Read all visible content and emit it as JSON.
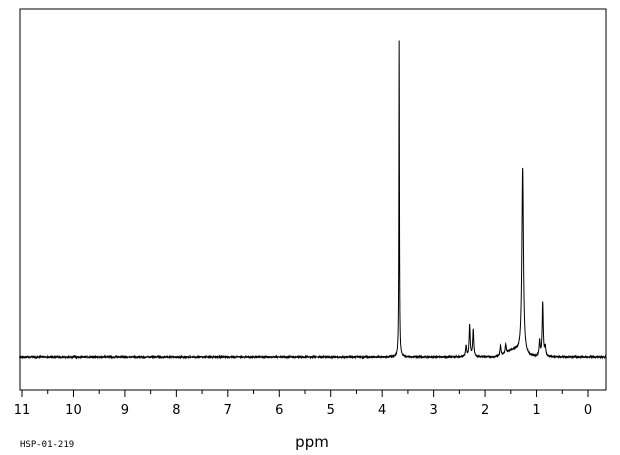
{
  "chart_data": {
    "type": "line",
    "xlabel": "ppm",
    "ylabel": "",
    "xlim": [
      11,
      0
    ],
    "x_reversed": true,
    "ylim": [
      0,
      1
    ],
    "grid": false,
    "major_ticks": [
      11,
      10,
      9,
      8,
      7,
      6,
      5,
      4,
      3,
      2,
      1,
      0
    ],
    "tick_labels": [
      "11",
      "10",
      "9",
      "8",
      "7",
      "6",
      "5",
      "4",
      "3",
      "2",
      "1",
      "0"
    ],
    "baseline": 0.0,
    "peaks": [
      {
        "ppm": 3.67,
        "height": 1.0
      },
      {
        "ppm": 2.37,
        "height": 0.035
      },
      {
        "ppm": 2.3,
        "height": 0.1
      },
      {
        "ppm": 2.23,
        "height": 0.085
      },
      {
        "ppm": 1.7,
        "height": 0.032
      },
      {
        "ppm": 1.6,
        "height": 0.03
      },
      {
        "ppm": 1.27,
        "height": 0.59
      },
      {
        "ppm": 0.94,
        "height": 0.05
      },
      {
        "ppm": 0.88,
        "height": 0.17
      },
      {
        "ppm": 0.83,
        "height": 0.03
      }
    ],
    "spectrum_id": "HSP-01-219"
  },
  "colors": {
    "line": "#000000",
    "frame": "#000000",
    "background": "#ffffff"
  }
}
